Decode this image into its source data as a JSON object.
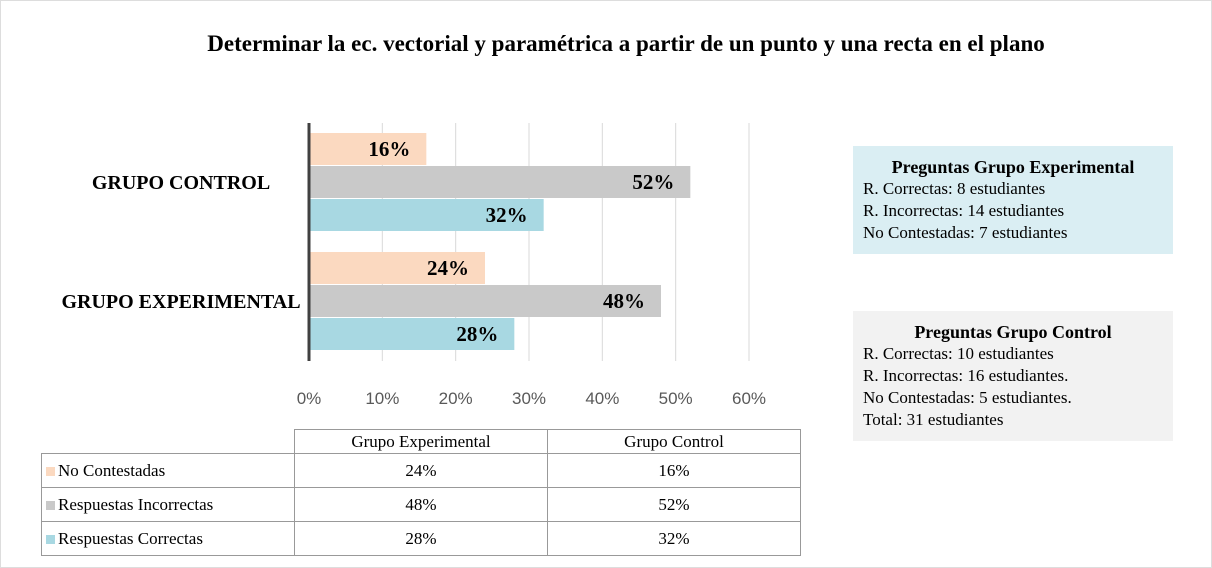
{
  "chart_data": {
    "type": "bar",
    "orientation": "horizontal",
    "title": "Determinar la ec. vectorial y paramétrica a partir de un punto y una recta en el plano",
    "categories": [
      "GRUPO CONTROL",
      "GRUPO EXPERIMENTAL"
    ],
    "series": [
      {
        "name": "No Contestadas",
        "color": "#fbd9c0",
        "values": [
          16,
          24
        ],
        "value_labels": [
          "16%",
          "24%"
        ]
      },
      {
        "name": "Respuestas Incorrectas",
        "color": "#c9c9c9",
        "values": [
          52,
          48
        ],
        "value_labels": [
          "52%",
          "48%"
        ]
      },
      {
        "name": "Respuestas Correctas",
        "color": "#a8d8e2",
        "values": [
          32,
          28
        ],
        "value_labels": [
          "32%",
          "28%"
        ]
      }
    ],
    "xlim": [
      0,
      60
    ],
    "xticks": [
      {
        "value": 0,
        "label": "0%"
      },
      {
        "value": 10,
        "label": "10%"
      },
      {
        "value": 20,
        "label": "20%"
      },
      {
        "value": 30,
        "label": "30%"
      },
      {
        "value": 40,
        "label": "40%"
      },
      {
        "value": 50,
        "label": "50%"
      },
      {
        "value": 60,
        "label": "60%"
      }
    ],
    "grid": true,
    "table_columns": [
      "Grupo Experimental",
      "Grupo Control"
    ]
  },
  "notes": [
    {
      "title": "Preguntas Grupo Experimental",
      "color": "#daeef3",
      "lines": [
        "R. Correctas: 8 estudiantes",
        "R. Incorrectas: 14 estudiantes",
        "No Contestadas: 7 estudiantes"
      ]
    },
    {
      "title": "Preguntas Grupo Control",
      "color": "#f2f2f2",
      "lines": [
        "R. Correctas: 10 estudiantes",
        "R. Incorrectas: 16 estudiantes.",
        "No Contestadas: 5 estudiantes.",
        "Total: 31 estudiantes"
      ]
    }
  ]
}
